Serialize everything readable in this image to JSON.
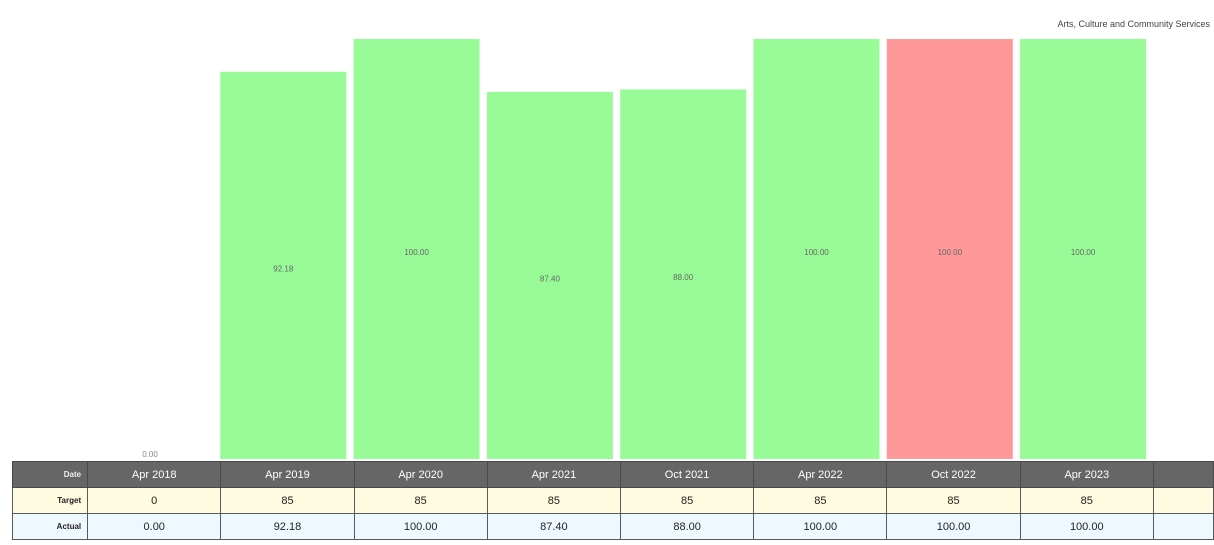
{
  "subtitle": "Arts, Culture and Community Services",
  "colors": {
    "met": "#98fb98",
    "missed": "#ff9999"
  },
  "chart_data": {
    "type": "bar",
    "categories": [
      "Apr 2018",
      "Apr 2019",
      "Apr 2020",
      "Apr 2021",
      "Oct 2021",
      "Apr 2022",
      "Oct 2022",
      "Apr 2023"
    ],
    "values": [
      0,
      92.18,
      100,
      87.4,
      88,
      100,
      100,
      100
    ],
    "value_labels": [
      "0.00",
      "92.18",
      "100.00",
      "87.40",
      "88.00",
      "100.00",
      "100.00",
      "100.00"
    ],
    "status": [
      "met",
      "met",
      "met",
      "met",
      "met",
      "met",
      "missed",
      "met"
    ],
    "ylim": [
      0,
      100
    ],
    "grid": false
  },
  "table": {
    "labels": {
      "date": "Date",
      "target": "Target",
      "actual": "Actual"
    },
    "dates": [
      "Apr 2018",
      "Apr 2019",
      "Apr 2020",
      "Apr 2021",
      "Oct 2021",
      "Apr 2022",
      "Oct 2022",
      "Apr 2023"
    ],
    "target": [
      "0",
      "85",
      "85",
      "85",
      "85",
      "85",
      "85",
      "85"
    ],
    "actual": [
      "0.00",
      "92.18",
      "100.00",
      "87.40",
      "88.00",
      "100.00",
      "100.00",
      "100.00"
    ]
  }
}
